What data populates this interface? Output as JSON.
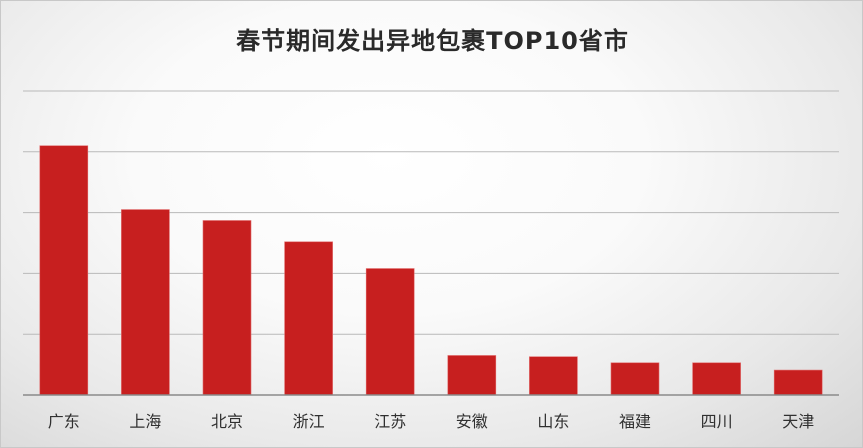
{
  "chart_data": {
    "type": "bar",
    "title": "春节期间发出异地包裹TOP10省市",
    "categories": [
      "广东",
      "上海",
      "北京",
      "浙江",
      "江苏",
      "安徽",
      "山东",
      "福建",
      "四川",
      "天津"
    ],
    "values": [
      4.1,
      3.05,
      2.87,
      2.52,
      2.08,
      0.65,
      0.63,
      0.53,
      0.53,
      0.41
    ],
    "ylim": [
      0,
      5
    ],
    "grid": true,
    "colors": {
      "bar": "#c71f1f",
      "grid": "#b9b9b9",
      "axis": "#8a8a8a"
    }
  }
}
